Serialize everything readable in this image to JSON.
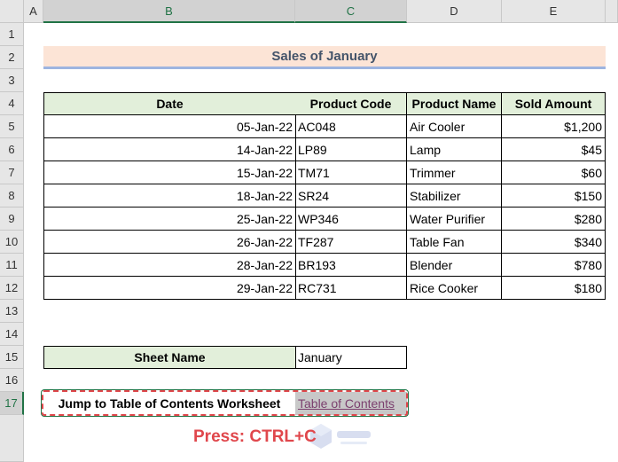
{
  "columns": [
    "A",
    "B",
    "C",
    "D",
    "E"
  ],
  "rows": [
    "1",
    "2",
    "3",
    "4",
    "5",
    "6",
    "7",
    "8",
    "9",
    "10",
    "11",
    "12",
    "13",
    "14",
    "15",
    "16",
    "17"
  ],
  "title": "Sales of January",
  "headers": [
    "Date",
    "Product Code",
    "Product Name",
    "Sold Amount"
  ],
  "data": [
    [
      "05-Jan-22",
      "AC048",
      "Air Cooler",
      "$1,200"
    ],
    [
      "14-Jan-22",
      "LP89",
      "Lamp",
      "$45"
    ],
    [
      "15-Jan-22",
      "TM71",
      "Trimmer",
      "$60"
    ],
    [
      "18-Jan-22",
      "SR24",
      "Stabilizer",
      "$150"
    ],
    [
      "25-Jan-22",
      "WP346",
      "Water Purifier",
      "$280"
    ],
    [
      "26-Jan-22",
      "TF287",
      "Table Fan",
      "$340"
    ],
    [
      "28-Jan-22",
      "BR193",
      "Blender",
      "$780"
    ],
    [
      "29-Jan-22",
      "RC731",
      "Rice Cooker",
      "$180"
    ]
  ],
  "sheet_name_label": "Sheet Name",
  "sheet_name_value": "January",
  "jump_label": "Jump to Table of Contents Worksheet",
  "jump_link": "Table of Contents",
  "instruction": "Press: CTRL+C",
  "watermark": "exceldemy EXCEL · DATA · BI",
  "colors": {
    "title_bg": "#fce4d6",
    "header_bg": "#e2efda",
    "instruction": "#e0474c",
    "link": "#7b3f6e"
  }
}
